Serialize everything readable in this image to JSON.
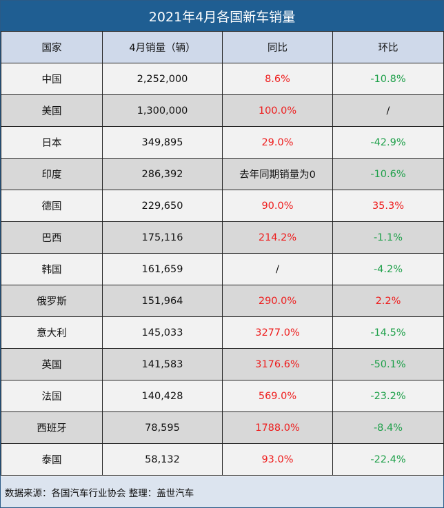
{
  "title": "2021年4月各国新车销量",
  "colors": {
    "title_bg": "#1f5e92",
    "header_bg": "#cfd9ea",
    "row_light": "#f2f2f2",
    "row_dark": "#d8d8d8",
    "positive": "#ee1c1c",
    "negative": "#1fa04a"
  },
  "chart_data": {
    "type": "table",
    "title": "2021年4月各国新车销量",
    "columns": [
      "国家",
      "4月销量（辆）",
      "同比",
      "环比"
    ],
    "rows": [
      {
        "country": "中国",
        "sales": "2,252,000",
        "yoy": "8.6%",
        "mom": "-10.8%"
      },
      {
        "country": "美国",
        "sales": "1,300,000",
        "yoy": "100.0%",
        "mom": "/"
      },
      {
        "country": "日本",
        "sales": "349,895",
        "yoy": "29.0%",
        "mom": "-42.9%"
      },
      {
        "country": "印度",
        "sales": "286,392",
        "yoy": "去年同期销量为0",
        "mom": "-10.6%"
      },
      {
        "country": "德国",
        "sales": "229,650",
        "yoy": "90.0%",
        "mom": "35.3%"
      },
      {
        "country": "巴西",
        "sales": "175,116",
        "yoy": "214.2%",
        "mom": "-1.1%"
      },
      {
        "country": "韩国",
        "sales": "161,659",
        "yoy": "/",
        "mom": "-4.2%"
      },
      {
        "country": "俄罗斯",
        "sales": "151,964",
        "yoy": "290.0%",
        "mom": "2.2%"
      },
      {
        "country": "意大利",
        "sales": "145,033",
        "yoy": "3277.0%",
        "mom": "-14.5%"
      },
      {
        "country": "英国",
        "sales": "141,583",
        "yoy": "3176.6%",
        "mom": "-50.1%"
      },
      {
        "country": "法国",
        "sales": "140,428",
        "yoy": "569.0%",
        "mom": "-23.2%"
      },
      {
        "country": "西班牙",
        "sales": "78,595",
        "yoy": "1788.0%",
        "mom": "-8.4%"
      },
      {
        "country": "泰国",
        "sales": "58,132",
        "yoy": "93.0%",
        "mom": "-22.4%"
      }
    ]
  },
  "footer": {
    "text": "数据来源：各国汽车行业协会 整理：盖世汽车"
  }
}
